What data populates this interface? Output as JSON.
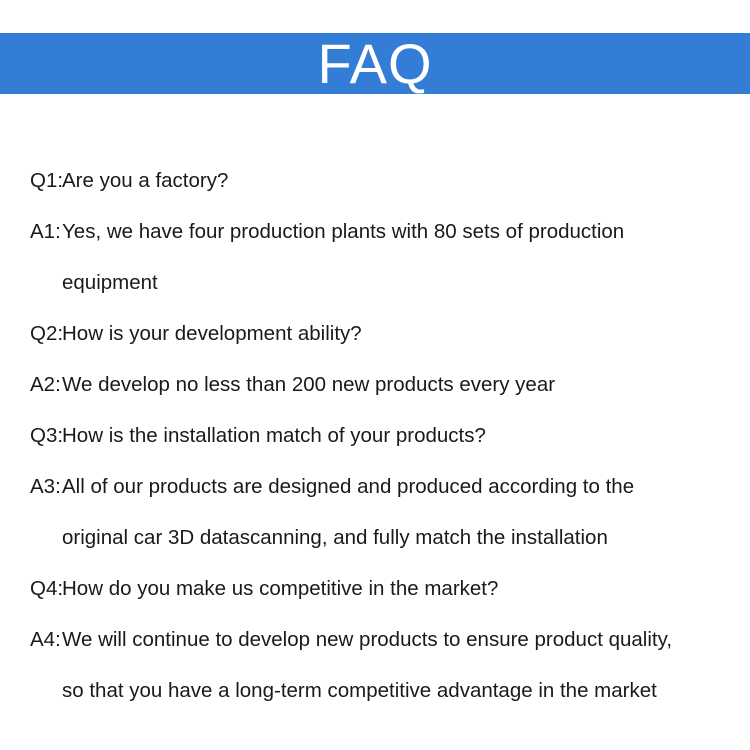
{
  "header": {
    "title": "FAQ",
    "background_color": "#337dd6"
  },
  "faq": [
    {
      "label": "Q1:",
      "lines": [
        "Are you a factory?"
      ]
    },
    {
      "label": "A1:",
      "lines": [
        "Yes, we have four production plants with 80 sets of production",
        "equipment"
      ]
    },
    {
      "label": "Q2:",
      "lines": [
        "How is your development ability?"
      ]
    },
    {
      "label": "A2:",
      "lines": [
        "We develop no less than 200 new products every year"
      ]
    },
    {
      "label": "Q3:",
      "lines": [
        "How is the installation match of your products?"
      ]
    },
    {
      "label": "A3:",
      "lines": [
        "All of our products are designed and produced according to the",
        "original car 3D datascanning, and fully match the installation"
      ]
    },
    {
      "label": "Q4:",
      "lines": [
        "How do you make us competitive in the market?"
      ]
    },
    {
      "label": "A4:",
      "lines": [
        "We will continue to develop new products to ensure product quality,",
        "so that you have a long-term competitive advantage in the market"
      ]
    }
  ]
}
